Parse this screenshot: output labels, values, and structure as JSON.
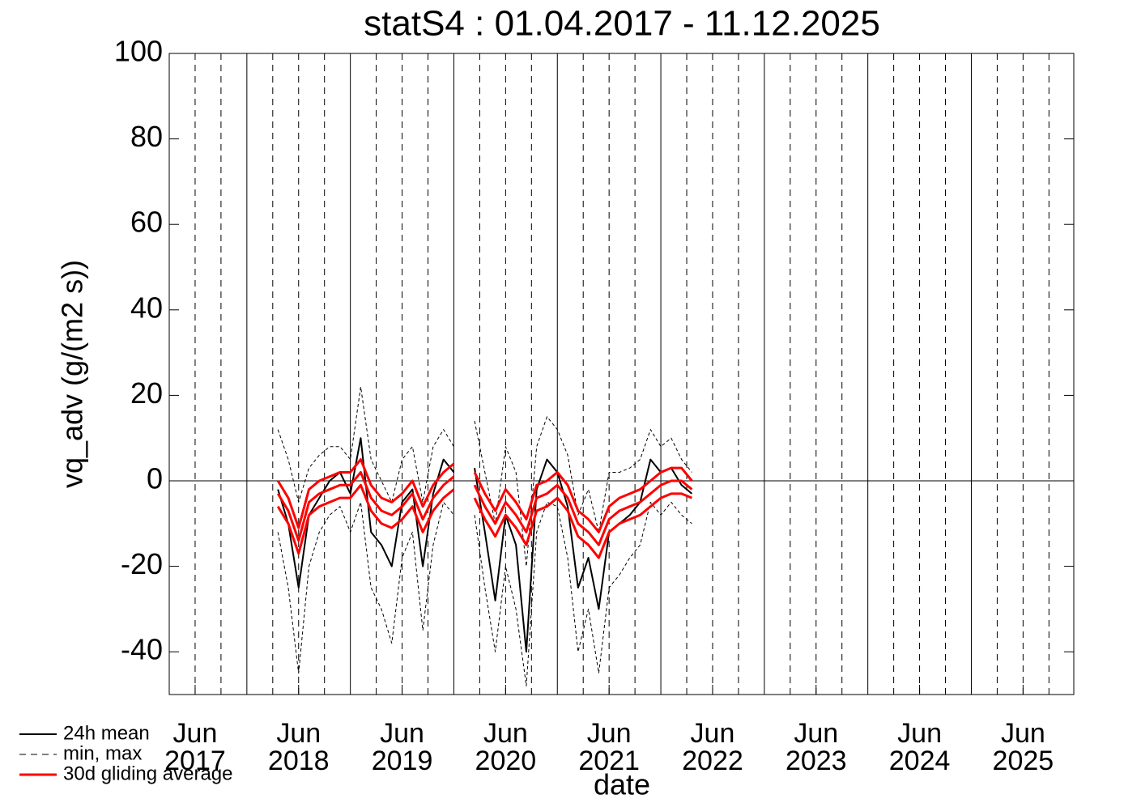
{
  "chart_data": {
    "type": "line",
    "title": "statS4 : 01.04.2017 - 11.12.2025",
    "x_label": "date",
    "y_label": "vq_adv (g/(m2 s))",
    "xlim": [
      2017.25,
      2025.99
    ],
    "ylim": [
      -50,
      100
    ],
    "yticks": [
      -40,
      -20,
      0,
      20,
      40,
      60,
      80,
      100
    ],
    "xticks": [
      {
        "value": 2017.5,
        "label": [
          "Jun",
          "2017"
        ]
      },
      {
        "value": 2018.5,
        "label": [
          "Jun",
          "2018"
        ]
      },
      {
        "value": 2019.5,
        "label": [
          "Jun",
          "2019"
        ]
      },
      {
        "value": 2020.5,
        "label": [
          "Jun",
          "2020"
        ]
      },
      {
        "value": 2021.5,
        "label": [
          "Jun",
          "2021"
        ]
      },
      {
        "value": 2022.5,
        "label": [
          "Jun",
          "2022"
        ]
      },
      {
        "value": 2023.5,
        "label": [
          "Jun",
          "2023"
        ]
      },
      {
        "value": 2024.5,
        "label": [
          "Jun",
          "2024"
        ]
      },
      {
        "value": 2025.5,
        "label": [
          "Jun",
          "2025"
        ]
      }
    ],
    "xgrid_major": [
      2018,
      2019,
      2020,
      2021,
      2022,
      2023,
      2024,
      2025
    ],
    "xgrid_minor": [
      2017.5,
      2017.75,
      2018.25,
      2018.5,
      2018.75,
      2019.25,
      2019.5,
      2019.75,
      2020.25,
      2020.5,
      2020.75,
      2021.25,
      2021.5,
      2021.75,
      2022.25,
      2022.5,
      2022.75,
      2023.25,
      2023.5,
      2023.75,
      2024.25,
      2024.5,
      2024.75,
      2025.25,
      2025.5,
      2025.75
    ],
    "x": [
      2018.3,
      2018.4,
      2018.5,
      2018.6,
      2018.7,
      2018.8,
      2018.9,
      2019.0,
      2019.1,
      2019.2,
      2019.3,
      2019.4,
      2019.5,
      2019.6,
      2019.7,
      2019.8,
      2019.9,
      2020.0,
      2020.1,
      2020.2,
      2020.3,
      2020.4,
      2020.5,
      2020.6,
      2020.7,
      2020.8,
      2020.9,
      2021.0,
      2021.1,
      2021.2,
      2021.3,
      2021.4,
      2021.5,
      2021.6,
      2021.7,
      2021.8,
      2021.9,
      2022.0,
      2022.1,
      2022.2,
      2022.3
    ],
    "series": [
      {
        "name": "24h mean",
        "color": "#000000",
        "dash": false,
        "width": 2,
        "values": [
          -2,
          -10,
          -25,
          -8,
          -4,
          0,
          2,
          -3,
          10,
          -12,
          -15,
          -20,
          -5,
          -2,
          -20,
          -3,
          5,
          2,
          null,
          3,
          -12,
          -28,
          -8,
          -15,
          -40,
          -2,
          5,
          2,
          -6,
          -25,
          -18,
          -30,
          -12,
          -10,
          -8,
          -5,
          5,
          2,
          3,
          -1,
          -3
        ]
      },
      {
        "name": "min, max",
        "color": "#000000",
        "dash": true,
        "width": 1,
        "min": [
          -12,
          -25,
          -45,
          -20,
          -12,
          -8,
          -6,
          -12,
          -5,
          -25,
          -30,
          -38,
          -18,
          -12,
          -35,
          -15,
          -5,
          -8,
          null,
          -8,
          -25,
          -40,
          -20,
          -30,
          -48,
          -12,
          -5,
          -6,
          -18,
          -40,
          -30,
          -45,
          -25,
          -22,
          -18,
          -15,
          -5,
          -8,
          -5,
          -8,
          -10
        ],
        "max": [
          12,
          5,
          -5,
          3,
          6,
          8,
          8,
          5,
          22,
          5,
          0,
          -5,
          5,
          8,
          -5,
          8,
          12,
          8,
          null,
          14,
          2,
          -10,
          8,
          2,
          -20,
          8,
          15,
          12,
          6,
          -8,
          -2,
          -12,
          2,
          2,
          3,
          5,
          12,
          8,
          10,
          5,
          2
        ]
      },
      {
        "name": "30d gliding average",
        "color": "#ff0000",
        "dash": false,
        "width": 3,
        "values": [
          -3,
          -7,
          -14,
          -5,
          -3,
          -2,
          -1,
          -1,
          2,
          -4,
          -7,
          -8,
          -6,
          -3,
          -9,
          -4,
          -1,
          1,
          null,
          -1,
          -6,
          -10,
          -5,
          -8,
          -12,
          -4,
          -3,
          -1,
          -4,
          -10,
          -12,
          -15,
          -9,
          -7,
          -6,
          -5,
          -3,
          -1,
          0,
          0,
          -2
        ],
        "min": [
          -6,
          -10,
          -17,
          -8,
          -6,
          -5,
          -4,
          -4,
          -1,
          -7,
          -10,
          -11,
          -9,
          -6,
          -12,
          -7,
          -4,
          -2,
          null,
          -4,
          -9,
          -13,
          -8,
          -11,
          -15,
          -7,
          -6,
          -4,
          -7,
          -13,
          -15,
          -18,
          -12,
          -10,
          -9,
          -8,
          -6,
          -4,
          -3,
          -3,
          -4
        ],
        "max": [
          0,
          -4,
          -11,
          -2,
          0,
          1,
          2,
          2,
          5,
          -1,
          -4,
          -5,
          -3,
          0,
          -6,
          -1,
          2,
          4,
          null,
          2,
          -3,
          -7,
          -2,
          -5,
          -9,
          -1,
          0,
          2,
          -1,
          -7,
          -9,
          -12,
          -6,
          -4,
          -3,
          -2,
          0,
          2,
          3,
          3,
          0
        ]
      }
    ]
  }
}
